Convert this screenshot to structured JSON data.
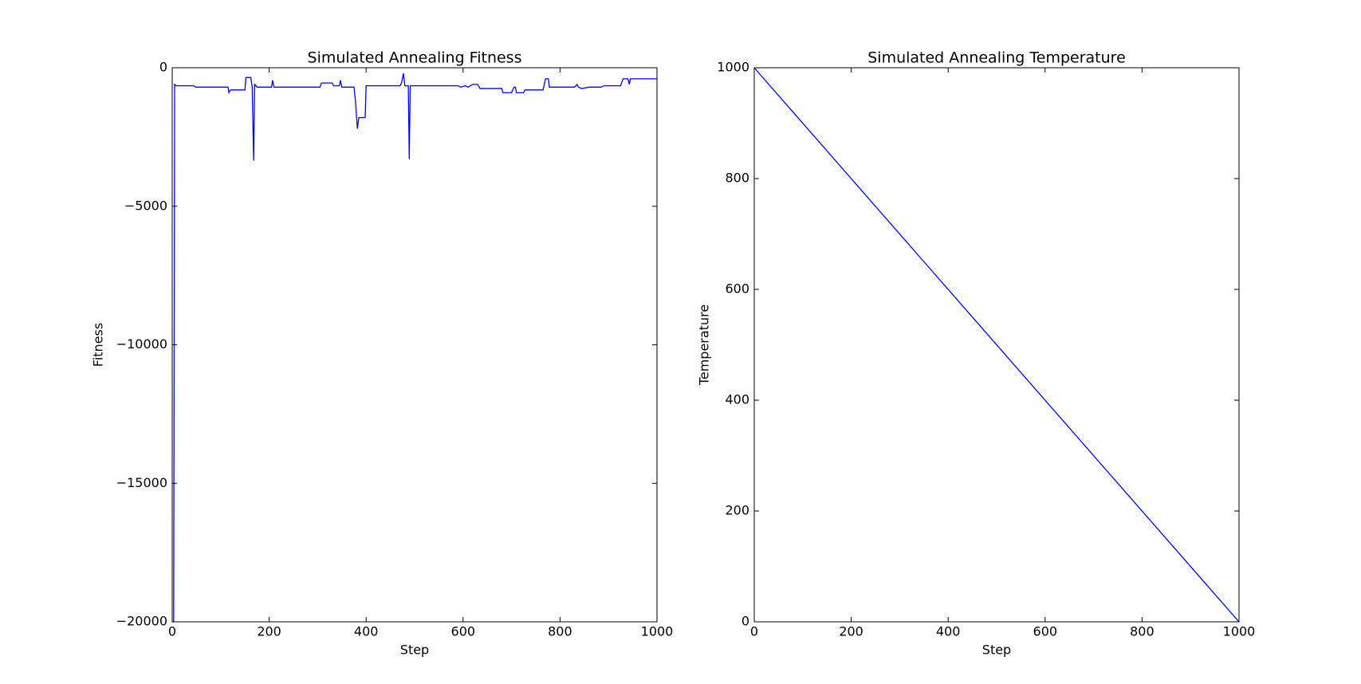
{
  "chart_data": [
    {
      "type": "line",
      "title": "Simulated Annealing Fitness",
      "xlabel": "Step",
      "ylabel": "Fitness",
      "x": [
        0,
        3,
        5,
        8,
        45,
        48,
        115,
        117,
        120,
        150,
        152,
        162,
        165,
        168,
        170,
        175,
        205,
        207,
        210,
        305,
        308,
        330,
        333,
        345,
        347,
        350,
        375,
        378,
        382,
        385,
        398,
        400,
        470,
        473,
        477,
        480,
        487,
        489,
        491,
        590,
        595,
        605,
        610,
        620,
        630,
        635,
        680,
        682,
        700,
        705,
        708,
        710,
        725,
        728,
        765,
        770,
        776,
        778,
        830,
        835,
        838,
        845,
        860,
        885,
        890,
        925,
        930,
        940,
        943,
        945,
        1000
      ],
      "series": [
        {
          "color": "#0000ff",
          "values": [
            -20000,
            -20000,
            -600,
            -650,
            -650,
            -700,
            -700,
            -900,
            -800,
            -800,
            -350,
            -350,
            -700,
            -3350,
            -600,
            -700,
            -700,
            -450,
            -700,
            -700,
            -550,
            -550,
            -650,
            -650,
            -450,
            -700,
            -700,
            -1200,
            -2200,
            -1800,
            -1800,
            -650,
            -650,
            -550,
            -200,
            -650,
            -650,
            -3300,
            -650,
            -650,
            -700,
            -650,
            -700,
            -600,
            -600,
            -750,
            -750,
            -900,
            -900,
            -700,
            -700,
            -900,
            -900,
            -800,
            -800,
            -400,
            -400,
            -700,
            -700,
            -600,
            -700,
            -750,
            -700,
            -700,
            -650,
            -650,
            -400,
            -400,
            -600,
            -400,
            -400
          ]
        }
      ],
      "xlim": [
        0,
        1000
      ],
      "ylim": [
        -20000,
        0
      ],
      "xticks": [
        0,
        200,
        400,
        600,
        800,
        1000
      ],
      "yticks": [
        {
          "value": -20000,
          "label": "−20000"
        },
        {
          "value": -15000,
          "label": "−15000"
        },
        {
          "value": -10000,
          "label": "−10000"
        },
        {
          "value": -5000,
          "label": "−5000"
        },
        0
      ]
    },
    {
      "type": "line",
      "title": "Simulated Annealing Temperature",
      "xlabel": "Step",
      "ylabel": "Temperature",
      "x": [
        0,
        1000
      ],
      "series": [
        {
          "color": "#0000ff",
          "values": [
            1000,
            0
          ]
        }
      ],
      "xlim": [
        0,
        1000
      ],
      "ylim": [
        0,
        1000
      ],
      "xticks": [
        0,
        200,
        400,
        600,
        800,
        1000
      ],
      "yticks": [
        0,
        200,
        400,
        600,
        800,
        1000
      ]
    }
  ]
}
